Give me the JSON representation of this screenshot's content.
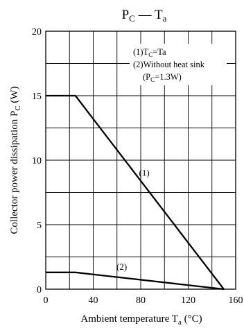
{
  "chart_data": {
    "type": "line",
    "title": {
      "main": "P",
      "sub1": "C",
      "dash": " — ",
      "main2": "T",
      "sub2": "a"
    },
    "ylabel": {
      "main": "Collector power dissipation  P",
      "sub": "C",
      "unit": "  (W)"
    },
    "xlabel": {
      "main": "Ambient temperature  T",
      "sub": "a",
      "unit": "  (°C)"
    },
    "xlim": [
      0,
      160
    ],
    "ylim": [
      0,
      20
    ],
    "x_ticks": [
      0,
      40,
      80,
      120,
      160
    ],
    "y_ticks": [
      0,
      5,
      10,
      15,
      20
    ],
    "x_grid_step": 20,
    "y_grid_step": 2.5,
    "grid": true,
    "series": [
      {
        "name": "(1)",
        "x": [
          0,
          25,
          150
        ],
        "y": [
          15,
          15,
          0
        ],
        "label_at": [
          83,
          8.8
        ]
      },
      {
        "name": "(2)",
        "x": [
          0,
          25,
          150
        ],
        "y": [
          1.3,
          1.3,
          0
        ],
        "label_at": [
          64,
          1.5
        ]
      }
    ],
    "legend": {
      "placement": "top-right",
      "line1": {
        "a": "(1)T",
        "sub": "C",
        "b": "=Ta"
      },
      "line2": "(2)Without heat sink",
      "line3": {
        "a": "(P",
        "sub": "C",
        "b": "=1.3W)"
      }
    }
  }
}
